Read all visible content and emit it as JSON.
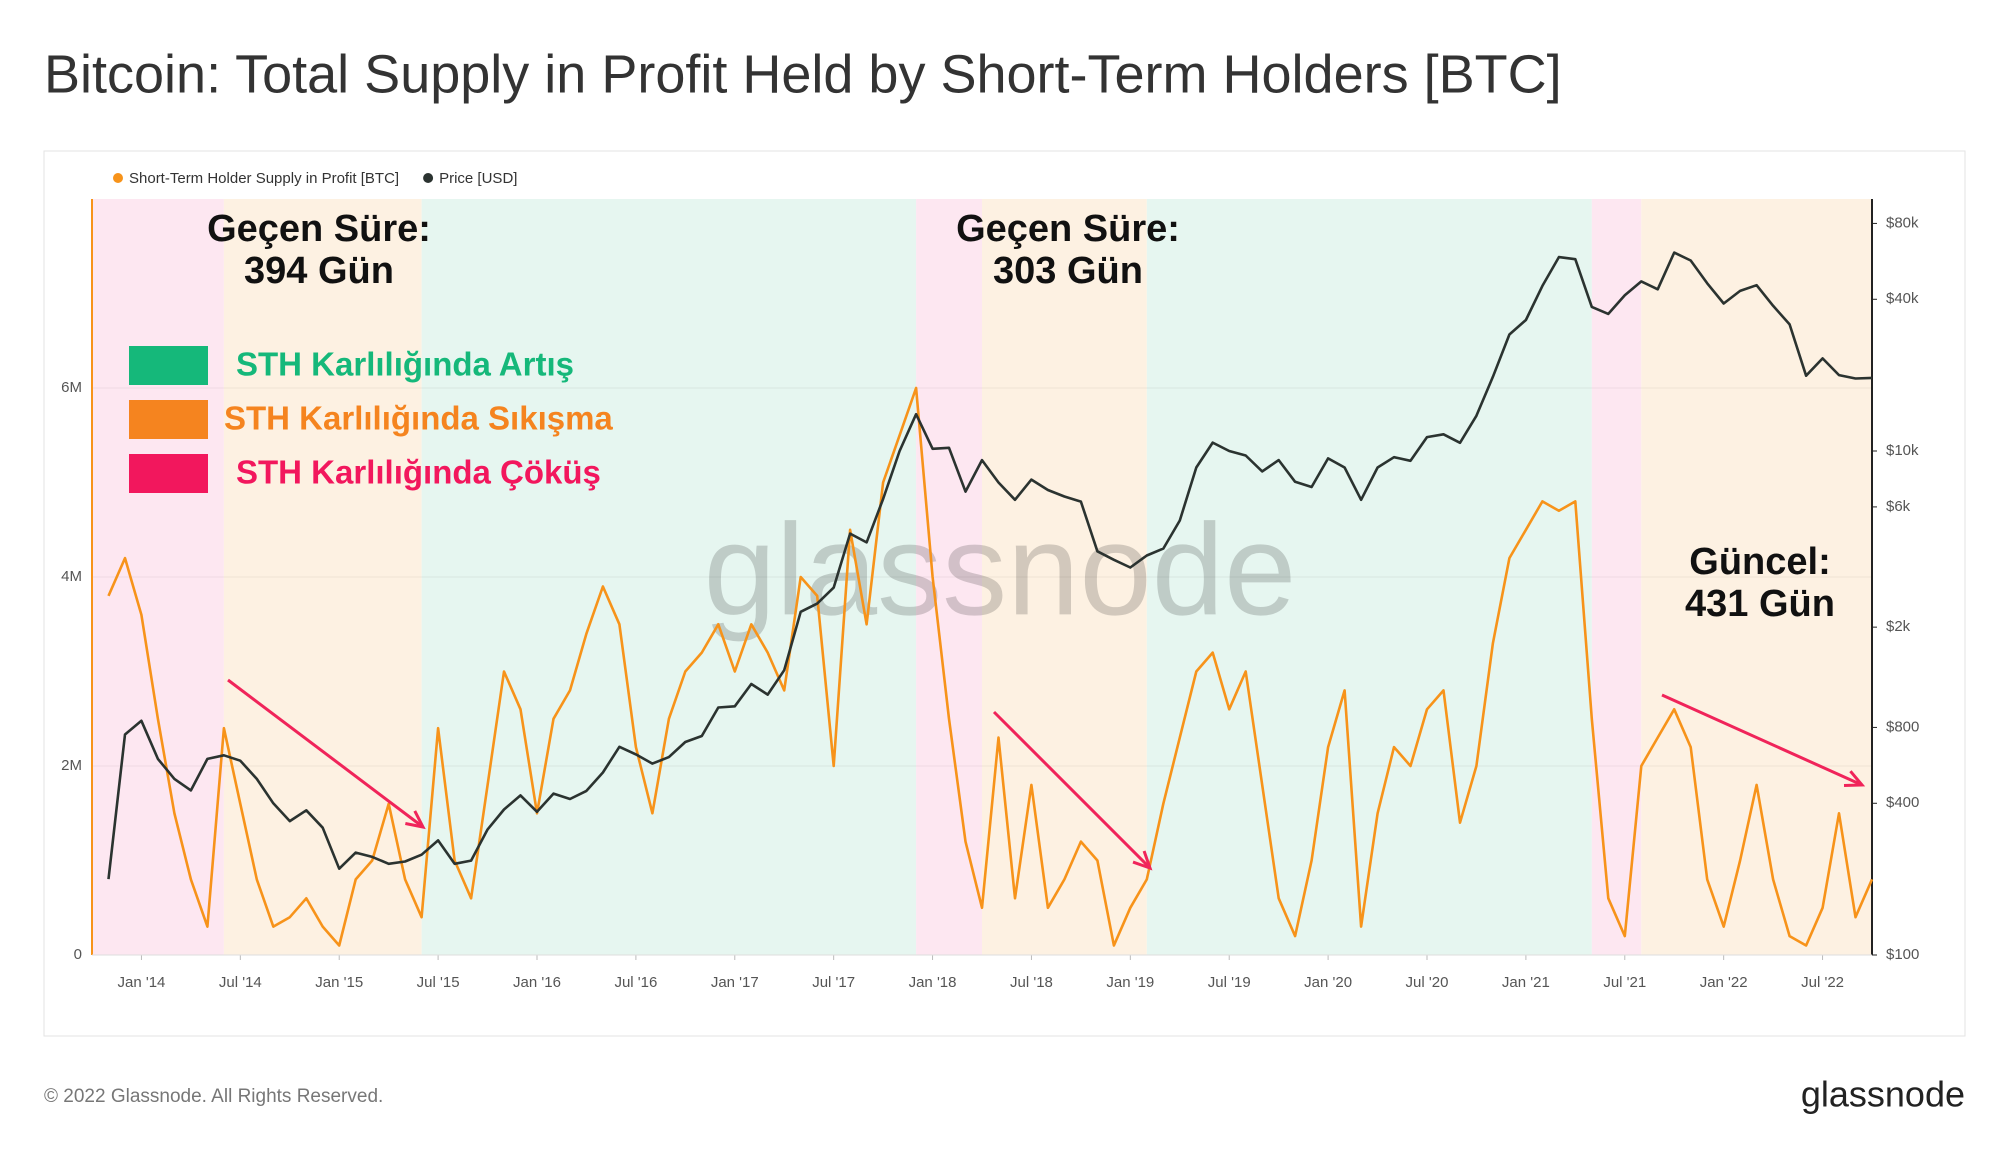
{
  "chart_data": {
    "type": "line",
    "title": "Bitcoin: Total Supply in Profit Held by Short-Term Holders [BTC]",
    "watermark": "glassnode",
    "footer": "© 2022 Glassnode. All Rights Reserved.",
    "logo": "glassnode",
    "x": [
      "2013-11",
      "2013-12",
      "2014-01",
      "2014-02",
      "2014-03",
      "2014-04",
      "2014-05",
      "2014-06",
      "2014-07",
      "2014-08",
      "2014-09",
      "2014-10",
      "2014-11",
      "2014-12",
      "2015-01",
      "2015-02",
      "2015-03",
      "2015-04",
      "2015-05",
      "2015-06",
      "2015-07",
      "2015-08",
      "2015-09",
      "2015-10",
      "2015-11",
      "2015-12",
      "2016-01",
      "2016-02",
      "2016-03",
      "2016-04",
      "2016-05",
      "2016-06",
      "2016-07",
      "2016-08",
      "2016-09",
      "2016-10",
      "2016-11",
      "2016-12",
      "2017-01",
      "2017-02",
      "2017-03",
      "2017-04",
      "2017-05",
      "2017-06",
      "2017-07",
      "2017-08",
      "2017-09",
      "2017-10",
      "2017-11",
      "2017-12",
      "2018-01",
      "2018-02",
      "2018-03",
      "2018-04",
      "2018-05",
      "2018-06",
      "2018-07",
      "2018-08",
      "2018-09",
      "2018-10",
      "2018-11",
      "2018-12",
      "2019-01",
      "2019-02",
      "2019-03",
      "2019-04",
      "2019-05",
      "2019-06",
      "2019-07",
      "2019-08",
      "2019-09",
      "2019-10",
      "2019-11",
      "2019-12",
      "2020-01",
      "2020-02",
      "2020-03",
      "2020-04",
      "2020-05",
      "2020-06",
      "2020-07",
      "2020-08",
      "2020-09",
      "2020-10",
      "2020-11",
      "2020-12",
      "2021-01",
      "2021-02",
      "2021-03",
      "2021-04",
      "2021-05",
      "2021-06",
      "2021-07",
      "2021-08",
      "2021-09",
      "2021-10",
      "2021-11",
      "2021-12",
      "2022-01",
      "2022-02",
      "2022-03",
      "2022-04",
      "2022-05",
      "2022-06",
      "2022-07",
      "2022-08",
      "2022-09",
      "2022-10"
    ],
    "series": [
      {
        "name": "Short-Term Holder Supply in Profit [BTC]",
        "color": "#f7931a",
        "axis": "y",
        "values": [
          3800000,
          4200000,
          3600000,
          2500000,
          1500000,
          800000,
          300000,
          2400000,
          1600000,
          800000,
          300000,
          400000,
          600000,
          300000,
          100000,
          800000,
          1000000,
          1600000,
          800000,
          400000,
          2400000,
          1000000,
          600000,
          1800000,
          3000000,
          2600000,
          1500000,
          2500000,
          2800000,
          3400000,
          3900000,
          3500000,
          2200000,
          1500000,
          2500000,
          3000000,
          3200000,
          3500000,
          3000000,
          3500000,
          3200000,
          2800000,
          4000000,
          3800000,
          2000000,
          4500000,
          3500000,
          5000000,
          5500000,
          6000000,
          4000000,
          2500000,
          1200000,
          500000,
          2300000,
          600000,
          1800000,
          500000,
          800000,
          1200000,
          1000000,
          100000,
          500000,
          800000,
          1600000,
          2300000,
          3000000,
          3200000,
          2600000,
          3000000,
          1800000,
          600000,
          200000,
          1000000,
          2200000,
          2800000,
          300000,
          1500000,
          2200000,
          2000000,
          2600000,
          2800000,
          1400000,
          2000000,
          3300000,
          4200000,
          4500000,
          4800000,
          4700000,
          4800000,
          2500000,
          600000,
          200000,
          2000000,
          2300000,
          2600000,
          2200000,
          800000,
          300000,
          1000000,
          1800000,
          800000,
          200000,
          100000,
          500000,
          1500000,
          400000,
          800000
        ]
      },
      {
        "name": "Price [USD]",
        "color": "#2b3330",
        "axis": "y2",
        "values": [
          200,
          750,
          850,
          600,
          500,
          450,
          600,
          620,
          590,
          500,
          400,
          340,
          375,
          320,
          220,
          255,
          245,
          230,
          235,
          250,
          285,
          230,
          237,
          315,
          378,
          430,
          370,
          437,
          416,
          448,
          530,
          670,
          625,
          575,
          610,
          700,
          740,
          960,
          970,
          1190,
          1080,
          1350,
          2300,
          2480,
          2870,
          4700,
          4340,
          6450,
          10000,
          14000,
          10200,
          10300,
          6900,
          9200,
          7500,
          6400,
          7700,
          7000,
          6600,
          6300,
          4000,
          3700,
          3450,
          3850,
          4100,
          5300,
          8600,
          10800,
          10000,
          9600,
          8300,
          9200,
          7550,
          7200,
          9350,
          8600,
          6400,
          8600,
          9450,
          9140,
          11350,
          11650,
          10780,
          13800,
          19700,
          29000,
          33100,
          45200,
          58800,
          57700,
          37300,
          35000,
          41500,
          47100,
          43800,
          61300,
          57000,
          46300,
          38500,
          43200,
          45500,
          37700,
          31800,
          19900,
          23300,
          20000,
          19400,
          19500
        ]
      }
    ],
    "xlim": [
      "2013-10",
      "2022-10"
    ],
    "xticks": [
      {
        "value": "2014-01",
        "label": "Jan '14"
      },
      {
        "value": "2014-07",
        "label": "Jul '14"
      },
      {
        "value": "2015-01",
        "label": "Jan '15"
      },
      {
        "value": "2015-07",
        "label": "Jul '15"
      },
      {
        "value": "2016-01",
        "label": "Jan '16"
      },
      {
        "value": "2016-07",
        "label": "Jul '16"
      },
      {
        "value": "2017-01",
        "label": "Jan '17"
      },
      {
        "value": "2017-07",
        "label": "Jul '17"
      },
      {
        "value": "2018-01",
        "label": "Jan '18"
      },
      {
        "value": "2018-07",
        "label": "Jul '18"
      },
      {
        "value": "2019-01",
        "label": "Jan '19"
      },
      {
        "value": "2019-07",
        "label": "Jul '19"
      },
      {
        "value": "2020-01",
        "label": "Jan '20"
      },
      {
        "value": "2020-07",
        "label": "Jul '20"
      },
      {
        "value": "2021-01",
        "label": "Jan '21"
      },
      {
        "value": "2021-07",
        "label": "Jul '21"
      },
      {
        "value": "2022-01",
        "label": "Jan '22"
      },
      {
        "value": "2022-07",
        "label": "Jul '22"
      }
    ],
    "ylim": [
      0,
      8000000
    ],
    "yticks": [
      0,
      {
        "value": 2000000,
        "label": "2M"
      },
      {
        "value": 4000000,
        "label": "4M"
      },
      {
        "value": 6000000,
        "label": "6M"
      }
    ],
    "y2lim": [
      100,
      100000
    ],
    "y2_log": true,
    "y2ticks": [
      {
        "value": 100,
        "label": "$100"
      },
      {
        "value": 400,
        "label": "$400"
      },
      {
        "value": 800,
        "label": "$800"
      },
      {
        "value": 2000,
        "label": "$2k"
      },
      {
        "value": 6000,
        "label": "$6k"
      },
      {
        "value": 10000,
        "label": "$10k"
      },
      {
        "value": 40000,
        "label": "$40k"
      },
      {
        "value": 80000,
        "label": "$80k"
      }
    ],
    "regions": [
      {
        "start": "2013-10",
        "end": "2014-06",
        "color": "#fde3ee"
      },
      {
        "start": "2014-06",
        "end": "2015-06",
        "color": "#fdeedd"
      },
      {
        "start": "2015-06",
        "end": "2017-12",
        "color": "#e2f5ed"
      },
      {
        "start": "2017-12",
        "end": "2018-04",
        "color": "#fde3ee"
      },
      {
        "start": "2018-04",
        "end": "2019-02",
        "color": "#fdeedd"
      },
      {
        "start": "2019-02",
        "end": "2021-05",
        "color": "#e2f5ed"
      },
      {
        "start": "2021-05",
        "end": "2021-08",
        "color": "#fde3ee"
      },
      {
        "start": "2021-08",
        "end": "2022-10",
        "color": "#fdeedd"
      }
    ],
    "phase_legend": [
      {
        "name": "STH Karlılığında Artış",
        "color": "#15b87a"
      },
      {
        "name": "STH Karlılığında Sıkışma",
        "color": "#f5841f"
      },
      {
        "name": "STH Karlılığında Çöküş",
        "color": "#f2175d"
      }
    ],
    "annotations": [
      {
        "lines": [
          "Geçen Süre:",
          "394 Gün"
        ]
      },
      {
        "lines": [
          "Geçen Süre:",
          "303 Gün"
        ]
      },
      {
        "lines": [
          "Güncel:",
          "431 Gün"
        ]
      }
    ]
  }
}
